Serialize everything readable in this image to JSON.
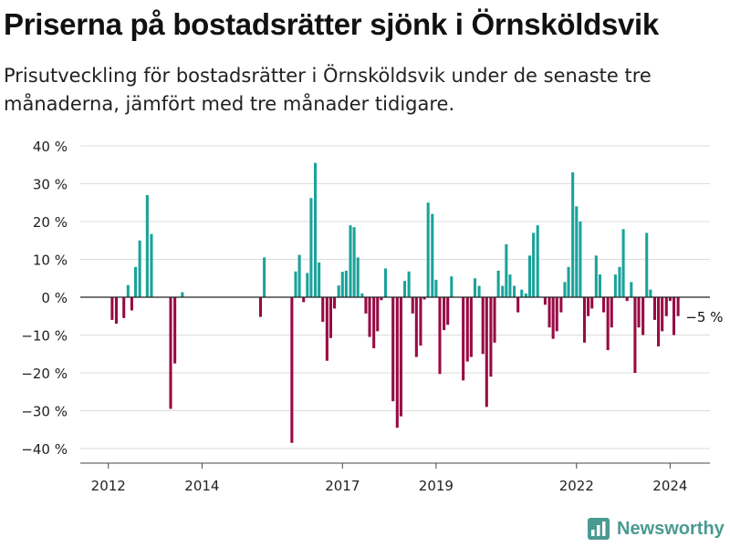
{
  "title": "Priserna på bostadsrätter sjönk i Örnsköldsvik",
  "subtitle": "Prisutveckling för bostadsrätter i Örnsköldsvik under de senaste tre månaderna, jämfört med tre månader tidigare.",
  "brand": {
    "name": "Newsworthy",
    "icon": "bar-chart-logo-icon",
    "color": "#4a9a91"
  },
  "chart_data": {
    "type": "bar",
    "title": "",
    "xlabel": "",
    "ylabel": "",
    "unit": "%",
    "ylim": [
      -40,
      40
    ],
    "y_ticks": [
      40,
      30,
      20,
      10,
      0,
      -10,
      -20,
      -30,
      -40
    ],
    "y_tick_labels": [
      "40 %",
      "30 %",
      "20 %",
      "10 %",
      "0 %",
      "−10 %",
      "−20 %",
      "−30 %",
      "−40 %"
    ],
    "x_range": [
      2011.4,
      2024.85
    ],
    "x_ticks": [
      2012,
      2014,
      2017,
      2019,
      2022,
      2024
    ],
    "x_tick_labels": [
      "2012",
      "2014",
      "2017",
      "2019",
      "2022",
      "2024"
    ],
    "grid": "horizontal",
    "colors": {
      "positive": "#1aa39a",
      "negative": "#990a44"
    },
    "annotation": {
      "text": "−5 %",
      "x": 2024.33,
      "y": -5
    },
    "x": [
      2012.08,
      2012.17,
      2012.33,
      2012.42,
      2012.5,
      2012.58,
      2012.67,
      2012.83,
      2012.92,
      2013.0,
      2013.33,
      2013.42,
      2013.58,
      2015.25,
      2015.33,
      2015.92,
      2016.0,
      2016.08,
      2016.17,
      2016.25,
      2016.33,
      2016.42,
      2016.5,
      2016.58,
      2016.67,
      2016.75,
      2016.83,
      2016.92,
      2017.0,
      2017.08,
      2017.17,
      2017.25,
      2017.33,
      2017.42,
      2017.5,
      2017.58,
      2017.67,
      2017.75,
      2017.83,
      2017.92,
      2018.08,
      2018.17,
      2018.25,
      2018.33,
      2018.42,
      2018.5,
      2018.58,
      2018.67,
      2018.75,
      2018.83,
      2018.92,
      2019.0,
      2019.08,
      2019.17,
      2019.25,
      2019.33,
      2019.58,
      2019.67,
      2019.75,
      2019.83,
      2019.92,
      2020.0,
      2020.08,
      2020.17,
      2020.25,
      2020.33,
      2020.42,
      2020.5,
      2020.58,
      2020.67,
      2020.75,
      2020.83,
      2020.92,
      2021.0,
      2021.08,
      2021.17,
      2021.33,
      2021.42,
      2021.5,
      2021.58,
      2021.67,
      2021.75,
      2021.83,
      2021.92,
      2022.0,
      2022.08,
      2022.17,
      2022.25,
      2022.33,
      2022.42,
      2022.5,
      2022.58,
      2022.67,
      2022.75,
      2022.83,
      2022.92,
      2023.0,
      2023.08,
      2023.17,
      2023.25,
      2023.33,
      2023.42,
      2023.5,
      2023.58,
      2023.67,
      2023.75,
      2023.83,
      2023.92,
      2024.0,
      2024.08,
      2024.17
    ],
    "values": [
      -6,
      -7,
      -5.5,
      3.2,
      -3.5,
      8,
      15,
      27,
      16.7,
      0,
      -29.5,
      -17.5,
      1.3,
      -5.2,
      10.5,
      -38.5,
      6.8,
      11.2,
      -1.3,
      6.4,
      26.2,
      35.5,
      9.2,
      -6.5,
      -16.8,
      -10.8,
      -3,
      3.1,
      6.7,
      7,
      19,
      18.5,
      10.5,
      1,
      -4.3,
      -10.5,
      -13.5,
      -9,
      -0.8,
      7.6,
      -27.5,
      -34.5,
      -31.5,
      4.3,
      6.8,
      -4.3,
      -15.8,
      -12.8,
      -0.6,
      25,
      22,
      4.6,
      -20.3,
      -8.7,
      -7.3,
      5.5,
      -22,
      -17,
      -15.8,
      5,
      3,
      -15,
      -29,
      -21,
      -12,
      7,
      3,
      14,
      6,
      3,
      -4,
      2,
      1,
      11,
      17,
      19,
      -2,
      -8,
      -11,
      -9,
      -4,
      4,
      8,
      33,
      24,
      20,
      -12,
      -5,
      -3,
      11,
      6,
      -4,
      -14,
      -8,
      6,
      8,
      18,
      -1,
      4,
      -20,
      -8,
      -10,
      17,
      2,
      -6,
      -13,
      -9,
      -5,
      -1,
      -10,
      -5
    ]
  }
}
